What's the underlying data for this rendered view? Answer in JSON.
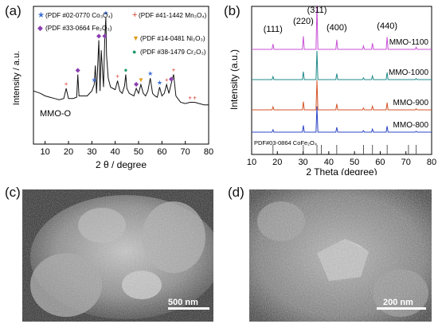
{
  "panels": {
    "a": "(a)",
    "b": "(b)",
    "c": "(c)",
    "d": "(d)"
  },
  "chart_data": [
    {
      "type": "line",
      "panel": "a",
      "xlabel": "2 θ / degree",
      "ylabel": "Intensity / a.u.",
      "xlim": [
        5,
        80
      ],
      "xticks": [
        10,
        20,
        30,
        40,
        50,
        60,
        70,
        80
      ],
      "series": [
        {
          "name": "MMO-O",
          "x": [
            5,
            8,
            10,
            12,
            14,
            16,
            18,
            19,
            20,
            22,
            23.5,
            24,
            24.5,
            26,
            28,
            30,
            31,
            31.5,
            32,
            33,
            33.5,
            34,
            35,
            35.5,
            36,
            36.3,
            37,
            38,
            39,
            40,
            41,
            42,
            43,
            44,
            44.5,
            45,
            46,
            48,
            49,
            50,
            51,
            52,
            53,
            54,
            55,
            56,
            57,
            58,
            59,
            60,
            61,
            62,
            63,
            64,
            65,
            66,
            68,
            70,
            72,
            74,
            76,
            78,
            80
          ],
          "y": [
            0.42,
            0.4,
            0.38,
            0.37,
            0.36,
            0.35,
            0.36,
            0.44,
            0.36,
            0.36,
            0.37,
            0.55,
            0.38,
            0.38,
            0.38,
            0.42,
            0.47,
            0.62,
            0.4,
            0.82,
            0.42,
            0.74,
            0.45,
            0.82,
            1.0,
            0.7,
            0.52,
            0.45,
            0.44,
            0.43,
            0.5,
            0.42,
            0.4,
            0.46,
            0.55,
            0.44,
            0.4,
            0.38,
            0.44,
            0.4,
            0.47,
            0.4,
            0.38,
            0.42,
            0.52,
            0.4,
            0.38,
            0.37,
            0.45,
            0.38,
            0.4,
            0.47,
            0.4,
            0.48,
            0.55,
            0.38,
            0.33,
            0.32,
            0.33,
            0.33,
            0.32,
            0.31,
            0.31
          ]
        }
      ],
      "legend": [
        {
          "label": "(PDF #02-0770 Co₃O₄)",
          "marker": "star",
          "color": "#3d6fd8"
        },
        {
          "label": "(PDF #41-1442 Mn₃O₄)",
          "marker": "plus",
          "color": "#d43a2b"
        },
        {
          "label": "(PDF #33-0664 Fe₂O₃)",
          "marker": "diamond",
          "color": "#8a3fb0"
        },
        {
          "label": "(PDF #14-0481 Ni₂O₃)",
          "marker": "triangle-down",
          "color": "#e19a1c"
        },
        {
          "label": "(PDF #38-1479 Cr₂O₃)",
          "marker": "circle",
          "color": "#1f9a6a"
        }
      ],
      "legend_placement": "top",
      "grid": false
    },
    {
      "type": "line",
      "panel": "b",
      "xlabel": "2 Theta (degree)",
      "ylabel": "Intensity (a.u.)",
      "xlim": [
        10,
        80
      ],
      "xticks": [
        10,
        20,
        30,
        40,
        50,
        60,
        70,
        80
      ],
      "peak_labels": [
        {
          "label": "(111)",
          "x": 18.3
        },
        {
          "label": "(220)",
          "x": 30.1
        },
        {
          "label": "(311)",
          "x": 35.4
        },
        {
          "label": "(400)",
          "x": 43.1
        },
        {
          "label": "(440)",
          "x": 62.7
        }
      ],
      "peaks": [
        18.3,
        30.1,
        35.4,
        43.1,
        53.5,
        57.0,
        62.7,
        74.0
      ],
      "series": [
        {
          "name": "MMO-1100",
          "color": "#c84fd6",
          "peak_heights": [
            0.12,
            0.3,
            1.0,
            0.22,
            0.08,
            0.14,
            0.28,
            0.05
          ]
        },
        {
          "name": "MMO-1000",
          "color": "#1f8a88",
          "peak_heights": [
            0.1,
            0.26,
            0.95,
            0.2,
            0.06,
            0.12,
            0.24,
            0.04
          ]
        },
        {
          "name": "MMO-900",
          "color": "#d45428",
          "peak_heights": [
            0.1,
            0.27,
            0.98,
            0.2,
            0.06,
            0.12,
            0.24,
            0.04
          ]
        },
        {
          "name": "MMO-800",
          "color": "#2c44c4",
          "peak_heights": [
            0.08,
            0.22,
            0.85,
            0.16,
            0.05,
            0.1,
            0.2,
            0.03
          ]
        }
      ],
      "reference": {
        "label": "PDF#03-0864 CoFe₂O₄",
        "lines": [
          18.3,
          30.1,
          35.4,
          37.1,
          43.1,
          53.5,
          57.0,
          62.7,
          71.0,
          74.0
        ]
      },
      "grid": false
    }
  ],
  "sem": {
    "c_scale": "500 nm",
    "d_scale": "200 nm"
  }
}
